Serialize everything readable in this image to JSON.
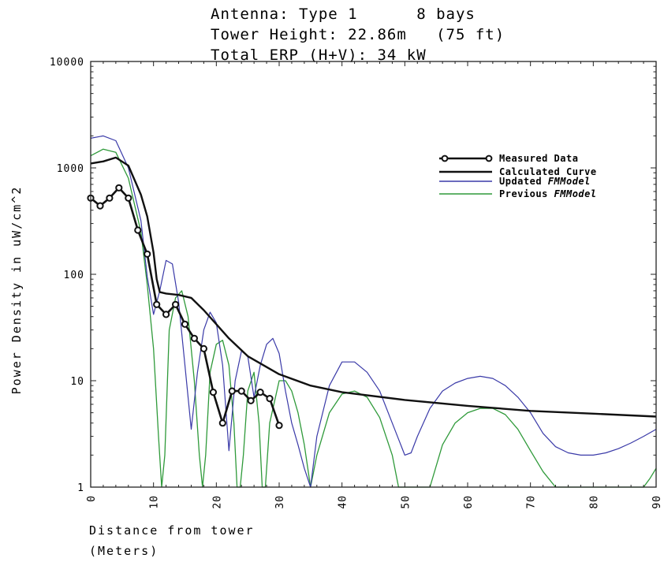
{
  "chart_data": {
    "type": "line",
    "title_lines": [
      "Antenna: Type 1      8 bays",
      "Tower Height: 22.86m   (75 ft)",
      "Total ERP (H+V): 34 kW"
    ],
    "xlabel_lines": [
      "Distance from tower",
      "(Meters)"
    ],
    "ylabel": "Power Density in uW/cm^2",
    "x_ticks": [
      "0",
      "10",
      "20",
      "30",
      "40",
      "50",
      "60",
      "70",
      "80",
      "90"
    ],
    "y_ticks": [
      "1",
      "10",
      "100",
      "1000",
      "10000"
    ],
    "xlim": [
      0,
      90
    ],
    "ylim": [
      1,
      10000
    ],
    "y_scale": "log",
    "grid": false,
    "legend_position": "top-right",
    "series": [
      {
        "name": "Measured Data",
        "color": "#111111",
        "marker": "circle",
        "x": [
          0,
          1.5,
          3,
          4.5,
          6,
          7.5,
          9,
          10.5,
          12,
          13.5,
          15,
          16.5,
          18,
          19.5,
          21,
          22.5,
          24,
          25.5,
          27,
          28.5,
          30
        ],
        "y": [
          520,
          440,
          520,
          650,
          520,
          260,
          155,
          52,
          42,
          52,
          34,
          25,
          20,
          7.8,
          4,
          8,
          8,
          6.5,
          7.8,
          6.8,
          3.8
        ]
      },
      {
        "name": "Calculated Curve",
        "color": "#111111",
        "x": [
          0,
          2,
          4,
          6,
          8,
          9,
          10,
          10.5,
          11,
          12,
          14,
          16,
          18,
          20,
          22,
          25,
          30,
          35,
          40,
          50,
          60,
          70,
          80,
          90
        ],
        "y": [
          1100,
          1150,
          1250,
          1050,
          560,
          350,
          160,
          90,
          68,
          66,
          64,
          60,
          46,
          34,
          25,
          17,
          11.5,
          9,
          7.8,
          6.6,
          5.8,
          5.2,
          4.9,
          4.6
        ]
      },
      {
        "name": "Updated ",
        "name_italic": "FMModel",
        "color": "#3a3aa8",
        "x": [
          0,
          2,
          4,
          6,
          8,
          9,
          10,
          11,
          12,
          13,
          14,
          15,
          16,
          17,
          18,
          19,
          20,
          21,
          22,
          23,
          24,
          25,
          26,
          27,
          28,
          29,
          30,
          31,
          32,
          33,
          34,
          35,
          36,
          38,
          40,
          42,
          44,
          46,
          48,
          50,
          51,
          52,
          54,
          56,
          58,
          60,
          62,
          64,
          66,
          68,
          70,
          72,
          74,
          76,
          78,
          80,
          82,
          84,
          86,
          88,
          90
        ],
        "y": [
          1900,
          2000,
          1800,
          1000,
          320,
          95,
          42,
          70,
          135,
          125,
          55,
          14,
          3.5,
          12,
          30,
          44,
          35,
          14,
          2.2,
          10,
          19,
          17,
          7,
          14,
          22,
          25,
          18,
          8,
          4,
          2.5,
          1.5,
          1,
          3,
          9,
          15,
          15,
          12,
          8,
          4,
          2,
          2.1,
          3,
          5.5,
          8,
          9.5,
          10.5,
          11,
          10.5,
          9,
          7,
          5,
          3.2,
          2.4,
          2.1,
          2.0,
          2.0,
          2.1,
          2.3,
          2.6,
          3.0,
          3.5
        ]
      },
      {
        "name": "Previous ",
        "name_italic": "FMModel",
        "color": "#2f9a3a",
        "x": [
          0,
          2,
          4,
          6,
          8,
          9,
          10,
          10.8,
          11.3,
          11.8,
          12.5,
          13.5,
          14.5,
          15.5,
          16.5,
          17.3,
          17.8,
          18.3,
          19,
          20,
          21,
          22,
          22.8,
          23.3,
          23.8,
          24.3,
          25,
          26,
          26.8,
          27.3,
          27.8,
          28.5,
          30,
          31,
          32,
          33,
          34,
          35,
          36,
          38,
          40,
          42,
          44,
          46,
          48,
          49,
          50,
          54,
          56,
          58,
          60,
          62,
          64,
          66,
          68,
          70,
          72,
          74,
          75,
          88,
          89,
          90
        ],
        "y": [
          1300,
          1500,
          1400,
          800,
          250,
          80,
          20,
          3,
          1,
          2,
          30,
          60,
          70,
          40,
          10,
          2,
          1,
          2,
          12,
          22,
          24,
          14,
          4,
          1,
          1,
          2,
          8,
          12,
          4,
          1,
          1,
          4,
          10,
          10,
          8,
          5,
          2.5,
          1,
          2,
          5,
          7.5,
          8,
          7,
          4.5,
          2,
          1,
          1,
          1,
          2.5,
          4,
          5,
          5.5,
          5.5,
          4.8,
          3.5,
          2.2,
          1.4,
          1,
          1,
          1,
          1.2,
          1.5
        ]
      }
    ]
  }
}
